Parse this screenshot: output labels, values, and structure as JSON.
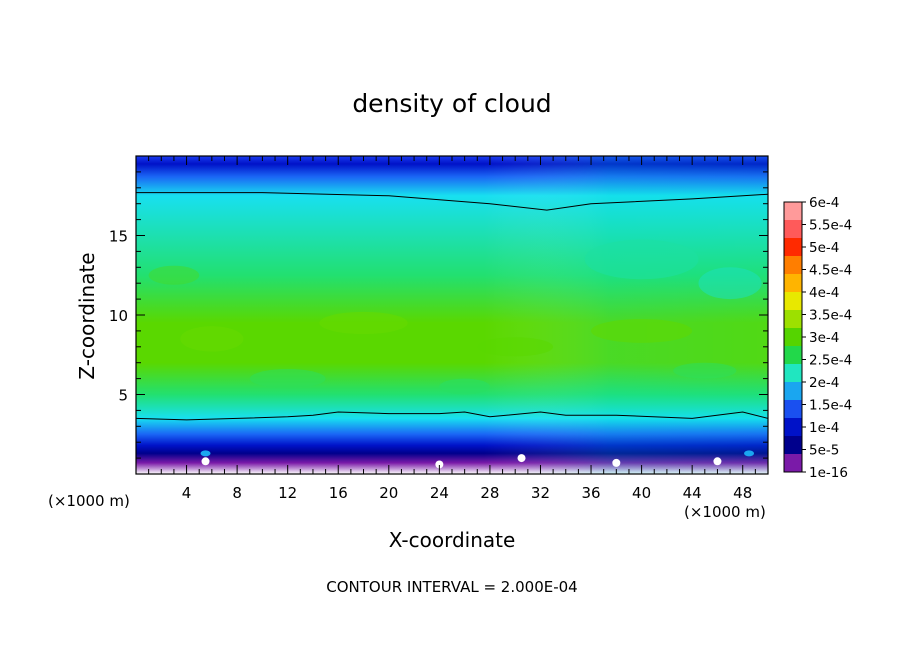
{
  "chart_data": {
    "type": "heatmap",
    "title": "density of cloud",
    "xlabel": "X-coordinate",
    "ylabel": "Z-coordinate",
    "x_unit_left": "(×1000 m)",
    "x_unit_right": "(×1000 m)",
    "footer": "CONTOUR INTERVAL = 2.000E-04",
    "xlim": [
      0,
      50
    ],
    "ylim": [
      0,
      20
    ],
    "x_ticks": [
      4,
      8,
      12,
      16,
      20,
      24,
      28,
      32,
      36,
      40,
      44,
      48
    ],
    "x_tick_labels": [
      "4",
      "8",
      "12",
      "16",
      "20",
      "24",
      "28",
      "32",
      "36",
      "40",
      "44",
      "48"
    ],
    "y_ticks": [
      5,
      10,
      15
    ],
    "y_tick_labels": [
      "5",
      "10",
      "15"
    ],
    "colorbar": {
      "labels": [
        "6e-4",
        "5.5e-4",
        "5e-4",
        "4.5e-4",
        "4e-4",
        "3.5e-4",
        "3e-4",
        "2.5e-4",
        "2e-4",
        "1.5e-4",
        "1e-4",
        "5e-5",
        "1e-16"
      ],
      "colors": [
        "#ff9a9a",
        "#ff5a5a",
        "#ff2a00",
        "#ff7e00",
        "#ffb400",
        "#e8e800",
        "#9de000",
        "#55d400",
        "#22d84a",
        "#20e6c0",
        "#1aa6f0",
        "#1a50f0",
        "#0012c8",
        "#00008c",
        "#7a1aa8"
      ]
    },
    "profile": [
      {
        "z": 0.7,
        "density": 1e-16
      },
      {
        "z": 1.3,
        "density": 5e-05
      },
      {
        "z": 1.8,
        "density": 0.0001
      },
      {
        "z": 2.5,
        "density": 0.00015
      },
      {
        "z": 3.5,
        "density": 0.0002
      },
      {
        "z": 5.0,
        "density": 0.00025
      },
      {
        "z": 7.0,
        "density": 0.0003
      },
      {
        "z": 9.5,
        "density": 0.0003
      },
      {
        "z": 12.5,
        "density": 0.00025
      },
      {
        "z": 17.5,
        "density": 0.0002
      },
      {
        "z": 18.7,
        "density": 0.00015
      },
      {
        "z": 19.5,
        "density": 0.0001
      }
    ],
    "contour_lines": [
      {
        "level": 0.0002,
        "points": [
          [
            0,
            17.7
          ],
          [
            10,
            17.7
          ],
          [
            20,
            17.5
          ],
          [
            28,
            17.0
          ],
          [
            32.5,
            16.6
          ],
          [
            36,
            17.0
          ],
          [
            44,
            17.3
          ],
          [
            50,
            17.6
          ]
        ]
      },
      {
        "level": 0.0002,
        "points": [
          [
            0,
            3.5
          ],
          [
            4,
            3.4
          ],
          [
            8,
            3.5
          ],
          [
            12,
            3.6
          ],
          [
            14,
            3.7
          ],
          [
            16,
            3.9
          ],
          [
            20,
            3.8
          ],
          [
            24,
            3.8
          ],
          [
            26,
            3.9
          ],
          [
            28,
            3.6
          ],
          [
            32,
            3.9
          ],
          [
            34,
            3.7
          ],
          [
            38,
            3.7
          ],
          [
            44,
            3.5
          ],
          [
            48,
            3.9
          ],
          [
            50,
            3.5
          ]
        ]
      }
    ]
  }
}
